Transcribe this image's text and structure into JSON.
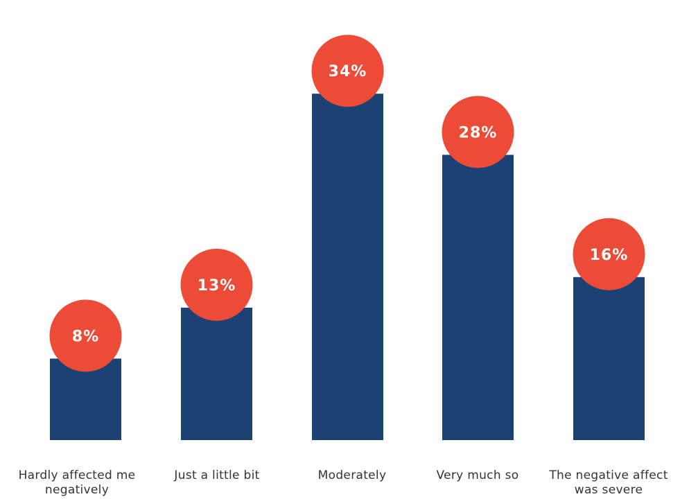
{
  "chart_data": {
    "type": "bar",
    "categories": [
      "Hardly affected me negatively",
      "Just a little bit",
      "Moderately",
      "Very much so",
      "The negative affect was severe"
    ],
    "values": [
      8,
      13,
      34,
      28,
      16
    ],
    "value_labels": [
      "8%",
      "13%",
      "34%",
      "28%",
      "16%"
    ],
    "title": "",
    "xlabel": "",
    "ylabel": "",
    "ylim": [
      0,
      40
    ],
    "grid": false,
    "legend": "none",
    "colors": {
      "bar": "#1c4273",
      "label_circle": "#eb4b37",
      "label_text": "#ffffff",
      "category_text": "#333333"
    }
  }
}
